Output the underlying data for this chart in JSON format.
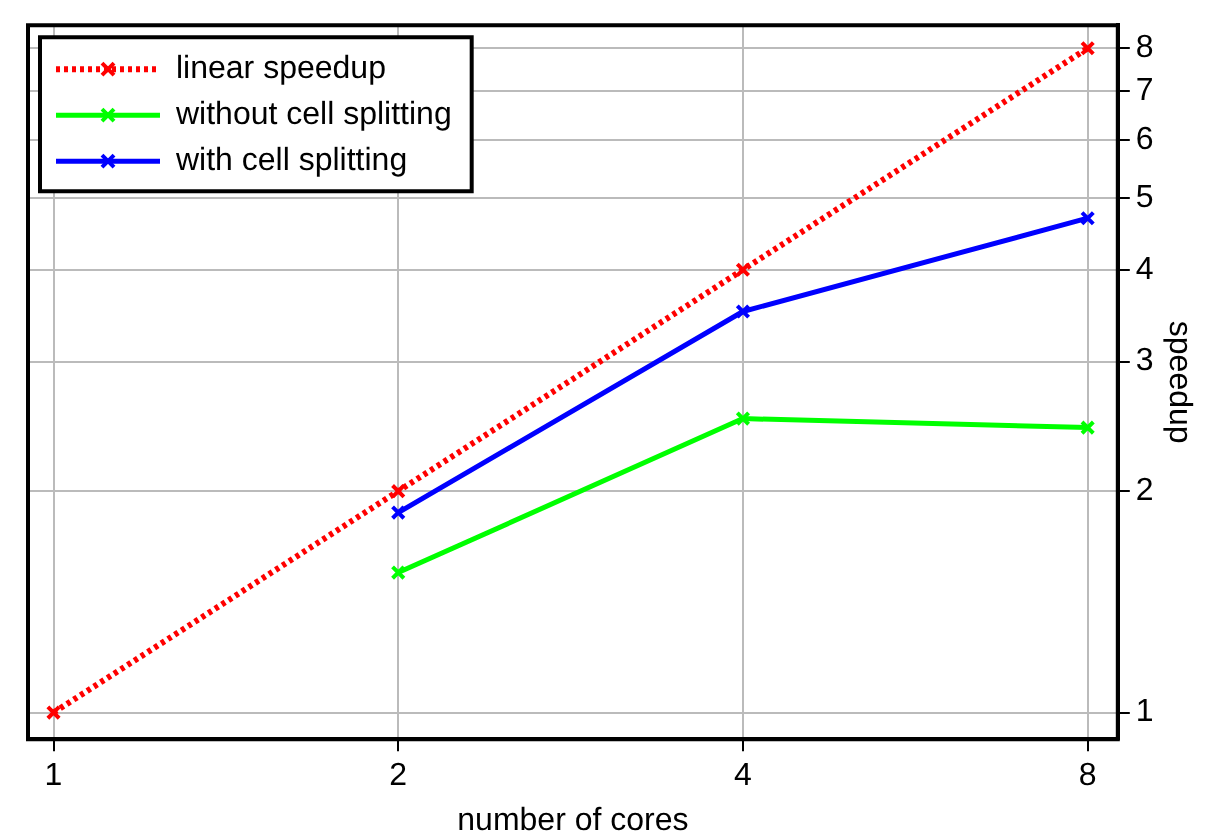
{
  "chart_data": {
    "type": "line",
    "xlabel": "number of cores",
    "ylabel": "speedup",
    "x": [
      1,
      2,
      4,
      8
    ],
    "series": [
      {
        "name": "linear speedup",
        "color": "#ff0000",
        "values": [
          1,
          2,
          4,
          8
        ],
        "line_style": "dotted"
      },
      {
        "name": "without cell splitting",
        "color": "#00ff00",
        "values": [
          null,
          1.55,
          2.51,
          2.44
        ],
        "line_style": "solid"
      },
      {
        "name": "with cell splitting",
        "color": "#0000ff",
        "values": [
          null,
          1.87,
          3.51,
          4.7
        ],
        "line_style": "solid"
      }
    ],
    "log": "xy",
    "xlim": [
      0.95,
      8.5
    ],
    "xticks": [
      1,
      2,
      4,
      8
    ],
    "ylim": [
      0.92,
      8.6
    ],
    "yticks": [
      1,
      2,
      3,
      4,
      5,
      6,
      7,
      8
    ],
    "grid": true,
    "legend": "top left",
    "marker": "cross"
  }
}
